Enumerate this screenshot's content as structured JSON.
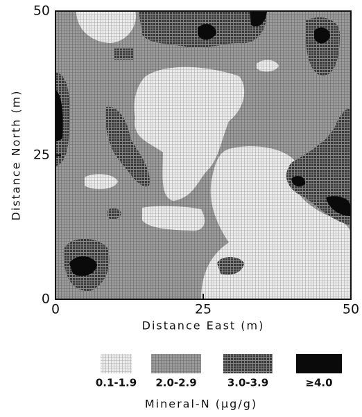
{
  "chart_data": {
    "type": "contour",
    "x_label": "Distance East (m)",
    "y_label": "Distance North (m)",
    "xlim": [
      0,
      50
    ],
    "ylim": [
      0,
      50
    ],
    "xticks": [
      0,
      25,
      50
    ],
    "yticks": [
      0,
      25,
      50
    ],
    "legend_title": "Mineral-N (μg/g)",
    "classes": [
      {
        "label": "0.1-1.9",
        "color": "#ececec"
      },
      {
        "label": "2.0-2.9",
        "color": "#9c9c9c"
      },
      {
        "label": "3.0-3.9",
        "color": "#3a3a3a"
      },
      {
        "label": "≥4.0",
        "color": "#0a0a0a"
      }
    ]
  }
}
